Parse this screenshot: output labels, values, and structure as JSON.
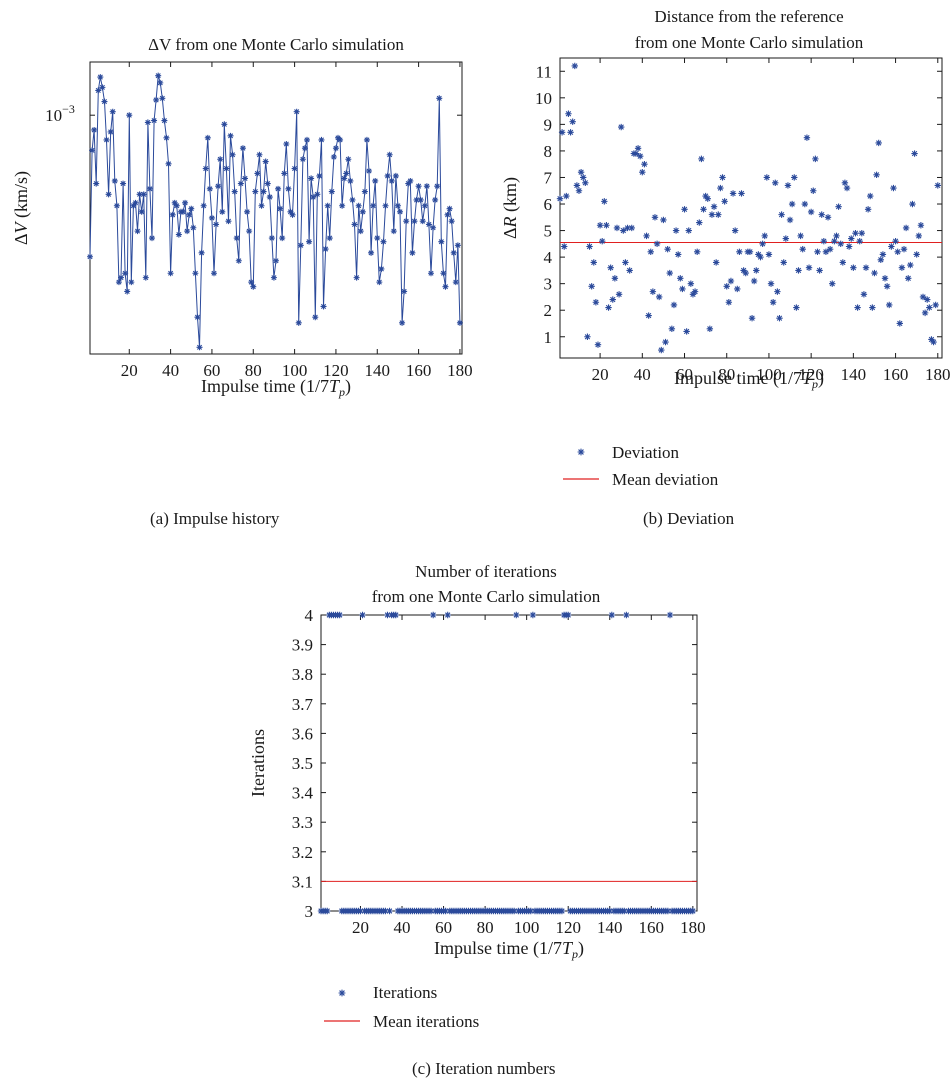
{
  "colors": {
    "series": "#2b4a9b",
    "mean": "#e02020",
    "frame": "#1a1a1a"
  },
  "captions": {
    "a": "(a)  Impulse history",
    "b": "(b)  Deviation",
    "c": "(c)  Iteration numbers"
  },
  "legend_b": {
    "deviation": "Deviation",
    "mean": "Mean deviation"
  },
  "legend_c": {
    "iterations": "Iterations",
    "mean": "Mean iterations"
  },
  "chart_data": [
    {
      "id": "a",
      "type": "line",
      "title": [
        "ΔV from one Monte Carlo simulation"
      ],
      "xlabel": "Impulse time (1/7Tp)",
      "ylabel": "ΔV (km/s)",
      "xlim": [
        1,
        181
      ],
      "ylim": [
        0.00026,
        0.00135
      ],
      "yscale": "log",
      "xticks": [
        20,
        40,
        60,
        80,
        100,
        120,
        140,
        160,
        180
      ],
      "yticks": [
        {
          "value": 0.001,
          "label": "10−3"
        }
      ],
      "marker": "asterisk",
      "series": [
        {
          "x": [
            1,
            2,
            3,
            4,
            5,
            6,
            7,
            8,
            9,
            10,
            11,
            12,
            13,
            14,
            15,
            16,
            17,
            18,
            19,
            20,
            21,
            22,
            23,
            24,
            25,
            26,
            27,
            28,
            29,
            30,
            31,
            32,
            33,
            34,
            35,
            36,
            37,
            38,
            39,
            40,
            41,
            42,
            43,
            44,
            45,
            46,
            47,
            48,
            49,
            50,
            51,
            52,
            53,
            54,
            55,
            56,
            57,
            58,
            59,
            60,
            61,
            62,
            63,
            64,
            65,
            66,
            67,
            68,
            69,
            70,
            71,
            72,
            73,
            74,
            75,
            76,
            77,
            78,
            79,
            80,
            81,
            82,
            83,
            84,
            85,
            86,
            87,
            88,
            89,
            90,
            91,
            92,
            93,
            94,
            95,
            96,
            97,
            98,
            99,
            100,
            101,
            102,
            103,
            104,
            105,
            106,
            107,
            108,
            109,
            110,
            111,
            112,
            113,
            114,
            115,
            116,
            117,
            118,
            119,
            120,
            121,
            122,
            123,
            124,
            125,
            126,
            127,
            128,
            129,
            130,
            131,
            132,
            133,
            134,
            135,
            136,
            137,
            138,
            139,
            140,
            141,
            142,
            143,
            144,
            145,
            146,
            147,
            148,
            149,
            150,
            151,
            152,
            153,
            154,
            155,
            156,
            157,
            158,
            159,
            160,
            161,
            162,
            163,
            164,
            165,
            166,
            167,
            168,
            169,
            170,
            171,
            172,
            173,
            174,
            175,
            176,
            177,
            178,
            179,
            180
          ],
          "y": [
            0.00045,
            0.00082,
            0.00092,
            0.00068,
            0.00115,
            0.00124,
            0.00117,
            0.00108,
            0.00087,
            0.00064,
            0.00091,
            0.00102,
            0.00069,
            0.0006,
            0.00039,
            0.0004,
            0.00068,
            0.00041,
            0.00037,
            0.001,
            0.00039,
            0.0006,
            0.00061,
            0.00052,
            0.00064,
            0.00058,
            0.00064,
            0.0004,
            0.00096,
            0.00066,
            0.0005,
            0.00097,
            0.00109,
            0.00125,
            0.0012,
            0.0011,
            0.00097,
            0.00088,
            0.00076,
            0.00041,
            0.00057,
            0.00061,
            0.0006,
            0.00051,
            0.00058,
            0.00058,
            0.00061,
            0.00052,
            0.00057,
            0.00059,
            0.00053,
            0.00041,
            0.00032,
            0.00027,
            0.00046,
            0.0006,
            0.00074,
            0.00088,
            0.00066,
            0.00056,
            0.00041,
            0.00054,
            0.00067,
            0.00078,
            0.00058,
            0.00095,
            0.00074,
            0.00055,
            0.00089,
            0.0008,
            0.00065,
            0.0005,
            0.00044,
            0.00068,
            0.00083,
            0.0007,
            0.00058,
            0.00052,
            0.00039,
            0.00038,
            0.00065,
            0.00072,
            0.0008,
            0.0006,
            0.00065,
            0.00077,
            0.00068,
            0.00063,
            0.0005,
            0.0004,
            0.00044,
            0.00066,
            0.00059,
            0.0005,
            0.00072,
            0.00085,
            0.00066,
            0.00058,
            0.00057,
            0.00074,
            0.00102,
            0.00031,
            0.00048,
            0.00078,
            0.00083,
            0.00087,
            0.00049,
            0.0007,
            0.00063,
            0.00032,
            0.00064,
            0.00071,
            0.00087,
            0.00034,
            0.00047,
            0.0006,
            0.0005,
            0.00065,
            0.00079,
            0.00083,
            0.00088,
            0.00087,
            0.0006,
            0.0007,
            0.00072,
            0.00078,
            0.00069,
            0.00062,
            0.00054,
            0.0004,
            0.0006,
            0.00052,
            0.00058,
            0.00065,
            0.00087,
            0.00073,
            0.00046,
            0.0006,
            0.00069,
            0.0005,
            0.00039,
            0.00042,
            0.00049,
            0.0006,
            0.00071,
            0.0008,
            0.00069,
            0.00052,
            0.00071,
            0.0006,
            0.00058,
            0.00031,
            0.00037,
            0.00055,
            0.00068,
            0.00069,
            0.00046,
            0.00055,
            0.00062,
            0.00067,
            0.00062,
            0.00055,
            0.0006,
            0.00067,
            0.00054,
            0.00041,
            0.00053,
            0.00062,
            0.00067,
            0.0011,
            0.00049,
            0.00041,
            0.00038,
            0.00057,
            0.00059,
            0.00055,
            0.00046,
            0.00039,
            0.00048,
            0.00031
          ]
        }
      ]
    },
    {
      "id": "b",
      "type": "scatter",
      "title": [
        "Distance from the reference",
        "from one Monte Carlo simulation"
      ],
      "xlabel": "Impulse time (1/7Tp)",
      "ylabel": "ΔR (km)",
      "xlim": [
        1,
        182
      ],
      "ylim": [
        0.2,
        11.5
      ],
      "xticks": [
        20,
        40,
        60,
        80,
        100,
        120,
        140,
        160,
        180
      ],
      "yticks": [
        1,
        2,
        3,
        4,
        5,
        6,
        7,
        8,
        9,
        10,
        11
      ],
      "mean": 4.55,
      "marker": "asterisk",
      "series": [
        {
          "name": "Deviation",
          "x": [
            1,
            2,
            3,
            4,
            5,
            6,
            7,
            8,
            9,
            10,
            11,
            12,
            13,
            14,
            15,
            16,
            17,
            18,
            19,
            20,
            21,
            22,
            23,
            24,
            25,
            26,
            27,
            28,
            29,
            30,
            31,
            32,
            33,
            34,
            35,
            36,
            37,
            38,
            39,
            40,
            41,
            42,
            43,
            44,
            45,
            46,
            47,
            48,
            49,
            50,
            51,
            52,
            53,
            54,
            55,
            56,
            57,
            58,
            59,
            60,
            61,
            62,
            63,
            64,
            65,
            66,
            67,
            68,
            69,
            70,
            71,
            72,
            73,
            74,
            75,
            76,
            77,
            78,
            79,
            80,
            81,
            82,
            83,
            84,
            85,
            86,
            87,
            88,
            89,
            90,
            91,
            92,
            93,
            94,
            95,
            96,
            97,
            98,
            99,
            100,
            101,
            102,
            103,
            104,
            105,
            106,
            107,
            108,
            109,
            110,
            111,
            112,
            113,
            114,
            115,
            116,
            117,
            118,
            119,
            120,
            121,
            122,
            123,
            124,
            125,
            126,
            127,
            128,
            129,
            130,
            131,
            132,
            133,
            134,
            135,
            136,
            137,
            138,
            139,
            140,
            141,
            142,
            143,
            144,
            145,
            146,
            147,
            148,
            149,
            150,
            151,
            152,
            153,
            154,
            155,
            156,
            157,
            158,
            159,
            160,
            161,
            162,
            163,
            164,
            165,
            166,
            167,
            168,
            169,
            170,
            171,
            172,
            173,
            174,
            175,
            176,
            177,
            178,
            179,
            180
          ],
          "y": [
            6.2,
            8.7,
            4.4,
            6.3,
            9.4,
            8.7,
            9.1,
            11.2,
            6.7,
            6.5,
            7.2,
            7.0,
            6.8,
            1.0,
            4.4,
            2.9,
            3.8,
            2.3,
            0.7,
            5.2,
            4.6,
            6.1,
            5.2,
            2.1,
            3.6,
            2.4,
            3.2,
            5.1,
            2.6,
            8.9,
            5.0,
            3.8,
            5.1,
            3.5,
            5.1,
            7.9,
            7.9,
            8.1,
            7.8,
            7.2,
            7.5,
            4.8,
            1.8,
            4.2,
            2.7,
            5.5,
            4.5,
            2.5,
            0.5,
            5.4,
            0.8,
            4.3,
            3.4,
            1.3,
            2.2,
            5.0,
            4.1,
            3.2,
            2.8,
            5.8,
            1.2,
            5.0,
            3.0,
            2.6,
            2.7,
            4.2,
            5.3,
            7.7,
            5.8,
            6.3,
            6.2,
            1.3,
            5.6,
            5.9,
            3.8,
            5.6,
            6.6,
            7.0,
            6.1,
            2.9,
            2.3,
            3.1,
            6.4,
            5.0,
            2.8,
            4.2,
            6.4,
            3.5,
            3.4,
            4.2,
            4.2,
            1.7,
            3.1,
            3.5,
            4.1,
            4.0,
            4.5,
            4.8,
            7.0,
            4.1,
            3.0,
            2.3,
            6.8,
            2.7,
            1.7,
            5.6,
            3.8,
            4.7,
            6.7,
            5.4,
            6.0,
            7.0,
            2.1,
            3.5,
            4.8,
            4.3,
            6.0,
            8.5,
            3.6,
            5.7,
            6.5,
            7.7,
            4.2,
            3.5,
            5.6,
            4.6,
            4.2,
            5.5,
            4.3,
            3.0,
            4.6,
            4.8,
            5.9,
            4.5,
            3.8,
            6.8,
            6.6,
            4.4,
            4.7,
            3.6,
            4.9,
            2.1,
            4.6,
            4.9,
            2.6,
            3.6,
            5.8,
            6.3,
            2.1,
            3.4,
            7.1,
            8.3,
            3.9,
            4.1,
            3.2,
            2.9,
            2.2,
            4.4,
            6.6,
            4.6,
            4.2,
            1.5,
            3.6,
            4.3,
            5.1,
            3.2,
            3.7,
            6.0,
            7.9,
            4.1,
            4.8,
            5.2,
            2.5,
            1.9,
            2.4,
            2.1,
            0.9,
            0.8,
            2.2,
            6.7
          ]
        }
      ]
    },
    {
      "id": "c",
      "type": "scatter",
      "title": [
        "Number of iterations",
        "from one Monte Carlo simulation"
      ],
      "xlabel": "Impulse time (1/7Tp)",
      "ylabel": "Iterations",
      "xlim": [
        1,
        182
      ],
      "ylim": [
        3,
        4
      ],
      "xticks": [
        20,
        40,
        60,
        80,
        100,
        120,
        140,
        160,
        180
      ],
      "yticks": [
        3,
        3.1,
        3.2,
        3.3,
        3.4,
        3.5,
        3.6,
        3.7,
        3.8,
        3.9,
        4
      ],
      "mean": 3.1,
      "marker": "asterisk",
      "series": [
        {
          "name": "Iterations",
          "x4": [
            5,
            6,
            7,
            8,
            9,
            10,
            21,
            33,
            35,
            36,
            37,
            55,
            62,
            95,
            103,
            118,
            119,
            120,
            141,
            148,
            169
          ],
          "x3_range": [
            1,
            180
          ]
        }
      ]
    }
  ]
}
